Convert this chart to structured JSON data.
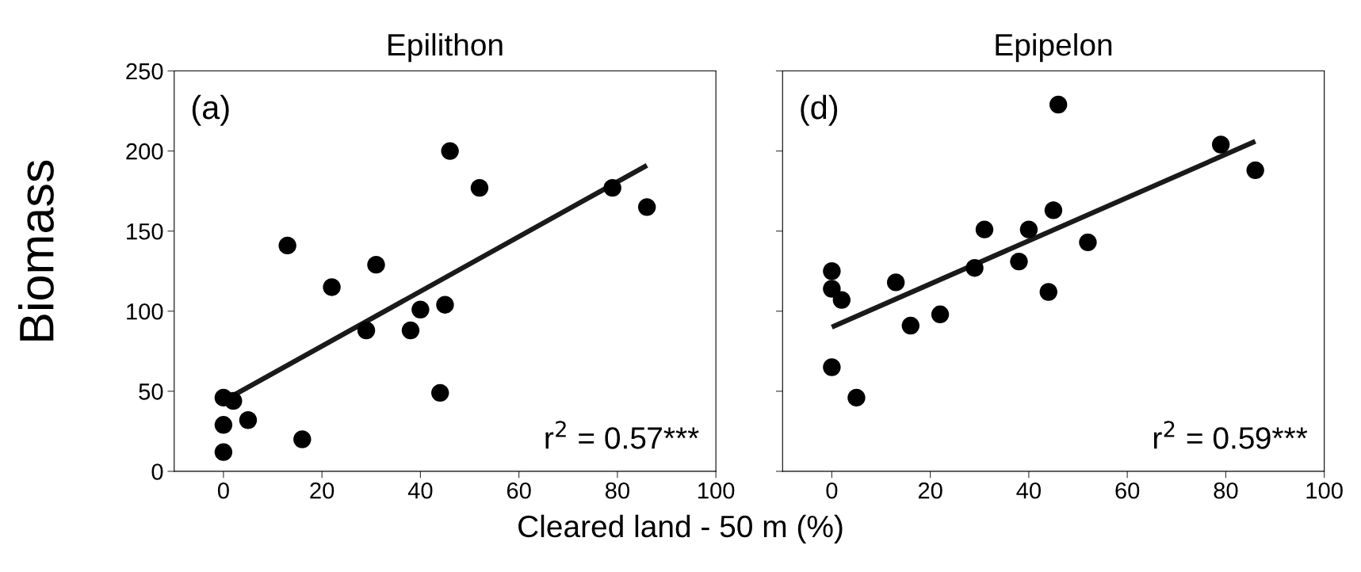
{
  "chart_data": [
    {
      "type": "scatter",
      "title": "Epilithon",
      "ylabel": "Biomass",
      "xlim": [
        -10,
        100
      ],
      "xticks": [
        0,
        20,
        40,
        60,
        80,
        100
      ],
      "ylim": [
        0,
        250
      ],
      "yticks": [
        0,
        50,
        100,
        150,
        200,
        250
      ],
      "grid": false,
      "annotations": [
        "(a)",
        "r$^{2}$ = 0.57***"
      ],
      "series": [
        {
          "marker": "circle",
          "color": "#000000",
          "x": [
            0,
            2,
            0,
            0,
            5,
            16,
            13,
            22,
            29,
            31,
            38,
            40,
            44,
            45,
            46,
            52,
            79,
            86
          ],
          "values": [
            46,
            44,
            29,
            12,
            32,
            20,
            141,
            115,
            88,
            129,
            88,
            101,
            49,
            104,
            200,
            177,
            177,
            165
          ]
        },
        {
          "type": "line",
          "color": "#1a1a1a",
          "x": [
            0,
            86
          ],
          "values": [
            44,
            191
          ]
        }
      ]
    },
    {
      "type": "scatter",
      "title": "Epipelon",
      "xlabel": "Cleared land - 50 m (%)",
      "xlim": [
        -10,
        100
      ],
      "xticks": [
        0,
        20,
        40,
        60,
        80,
        100
      ],
      "ylim": [
        0,
        250
      ],
      "yticks": [
        {
          "value": 0,
          "label": null
        },
        {
          "value": 50,
          "label": null
        },
        {
          "value": 100,
          "label": null
        },
        {
          "value": 150,
          "label": null
        },
        {
          "value": 200,
          "label": null
        },
        {
          "value": 250,
          "label": null
        }
      ],
      "tick_labels": "x",
      "grid": false,
      "annotations": [
        "(d)",
        "r$^{2}$ = 0.59***"
      ],
      "series": [
        {
          "marker": "circle",
          "color": "#000000",
          "x": [
            0,
            0,
            2,
            0,
            5,
            13,
            16,
            22,
            29,
            31,
            38,
            40,
            44,
            45,
            46,
            52,
            79,
            86
          ],
          "values": [
            125,
            114,
            107,
            65,
            46,
            118,
            91,
            98,
            127,
            151,
            131,
            151,
            112,
            163,
            229,
            143,
            204,
            188
          ]
        },
        {
          "type": "line",
          "color": "#1a1a1a",
          "x": [
            0,
            86
          ],
          "values": [
            90,
            206
          ]
        }
      ]
    }
  ]
}
